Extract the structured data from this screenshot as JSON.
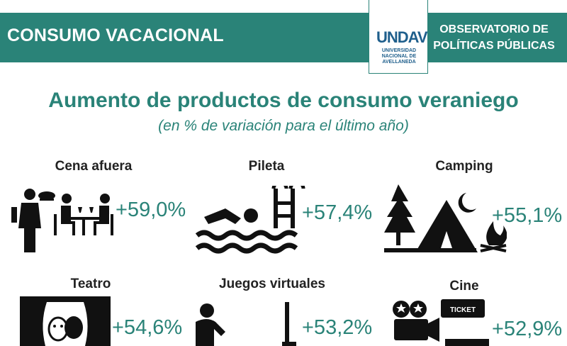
{
  "header": {
    "section_title": "CONSUMO VACACIONAL",
    "org_title_line1": "OBSERVATORIO DE",
    "org_title_line2": "POLÍTICAS PÚBLICAS"
  },
  "logo": {
    "word": "UNDAV",
    "sub_line1": "UNIVERSIDAD",
    "sub_line2": "NACIONAL DE",
    "sub_line3": "AVELLANEDA"
  },
  "title": "Aumento de productos de consumo veraniego",
  "subtitle": "(en % de variación para el último año)",
  "items": [
    {
      "label": "Cena afuera",
      "value": "+59,0%",
      "icon": "dinner-icon"
    },
    {
      "label": "Pileta",
      "value": "+57,4%",
      "icon": "swimming-icon"
    },
    {
      "label": "Camping",
      "value": "+55,1%",
      "icon": "camping-icon"
    },
    {
      "label": "Teatro",
      "value": "+54,6%",
      "icon": "theater-icon"
    },
    {
      "label": "Juegos virtuales",
      "value": "+53,2%",
      "icon": "gaming-icon"
    },
    {
      "label": "Cine",
      "value": "+52,9%",
      "icon": "cinema-icon"
    }
  ],
  "colors": {
    "accent": "#2a8378",
    "logo_blue": "#1f5f8c",
    "text": "#222222"
  },
  "ticket_text": "TICKET"
}
